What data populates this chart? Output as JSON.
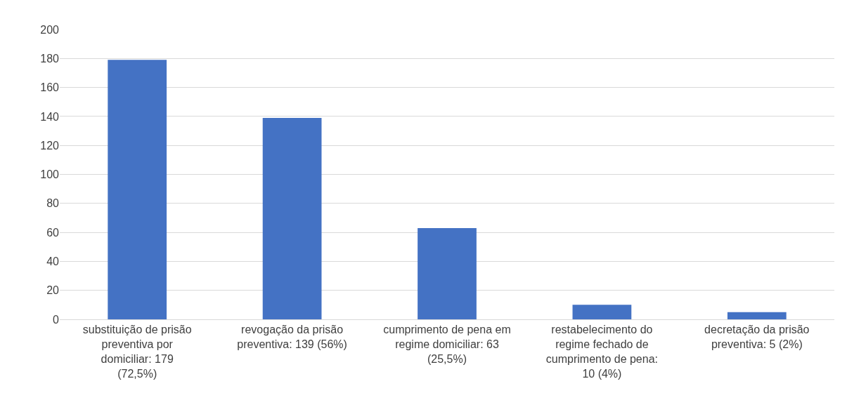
{
  "chart_data": {
    "type": "bar",
    "categories": [
      "substituição de prisão preventiva por domiciliar: 179 (72,5%)",
      "revogação da prisão preventiva: 139 (56%)",
      "cumprimento de pena em regime domiciliar: 63 (25,5%)",
      "restabelecimento do regime fechado de cumprimento de pena: 10 (4%)",
      "decretação da prisão preventiva: 5 (2%)"
    ],
    "values": [
      179,
      139,
      63,
      10,
      5
    ],
    "color": "#4472c4",
    "ylim": [
      0,
      200
    ],
    "yticks": [
      0,
      20,
      40,
      60,
      80,
      100,
      120,
      140,
      160,
      180,
      200
    ],
    "grid": "y"
  }
}
